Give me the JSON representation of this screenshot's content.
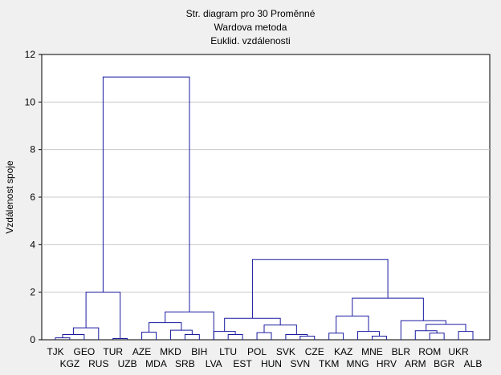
{
  "chart_data": {
    "type": "dendrogram",
    "title": [
      "Str. diagram pro 30  Proměnné",
      "Wardova metoda",
      "Euklid. vzdálenosti"
    ],
    "ylabel": "Vzdálenost spoje",
    "ylim": [
      0,
      12
    ],
    "yticks": [
      "0",
      "2",
      "4",
      "6",
      "8",
      "10",
      "12"
    ],
    "grid": true,
    "leaves": [
      "TJK",
      "KGZ",
      "GEO",
      "RUS",
      "TUR",
      "UZB",
      "AZE",
      "MDA",
      "MKD",
      "SRB",
      "BIH",
      "LVA",
      "LTU",
      "EST",
      "POL",
      "HUN",
      "SVK",
      "SVN",
      "CZE",
      "TKM",
      "KAZ",
      "MNG",
      "MNE",
      "HRV",
      "BLR",
      "ARM",
      "ROM",
      "BGR",
      "UKR",
      "ALB"
    ],
    "merges": [
      {
        "a": "L0",
        "b": "L1",
        "h": 0.08
      },
      {
        "a": "L4",
        "b": "L5",
        "h": 0.05
      },
      {
        "a": "M0",
        "b": "L2",
        "h": 0.22
      },
      {
        "a": "M2",
        "b": "L3",
        "h": 0.5
      },
      {
        "a": "L6",
        "b": "L7",
        "h": 0.32
      },
      {
        "a": "L9",
        "b": "L10",
        "h": 0.22
      },
      {
        "a": "L8",
        "b": "M5",
        "h": 0.4
      },
      {
        "a": "M4",
        "b": "M6",
        "h": 0.72
      },
      {
        "a": "M7",
        "b": "L11",
        "h": 1.17
      },
      {
        "a": "M3",
        "b": "M1",
        "h": 2.0
      },
      {
        "a": "M9",
        "b": "M8",
        "h": 11.05
      },
      {
        "a": "L12",
        "b": "L13",
        "h": 0.22
      },
      {
        "a": "M11",
        "b": "L11",
        "h": 0.35
      },
      {
        "a": "L14",
        "b": "L15",
        "h": 0.3
      },
      {
        "a": "L17",
        "b": "L18",
        "h": 0.15
      },
      {
        "a": "L16",
        "b": "M14",
        "h": 0.22
      },
      {
        "a": "M13",
        "b": "M15",
        "h": 0.62
      },
      {
        "a": "M12",
        "b": "M16",
        "h": 0.9
      },
      {
        "a": "L19",
        "b": "L20",
        "h": 0.28
      },
      {
        "a": "L22",
        "b": "L23",
        "h": 0.15
      },
      {
        "a": "L21",
        "b": "M19",
        "h": 0.35
      },
      {
        "a": "M18",
        "b": "M20",
        "h": 1.0
      },
      {
        "a": "L26",
        "b": "L27",
        "h": 0.28
      },
      {
        "a": "L25",
        "b": "M22",
        "h": 0.38
      },
      {
        "a": "L28",
        "b": "L29",
        "h": 0.35
      },
      {
        "a": "M23",
        "b": "M24",
        "h": 0.65
      },
      {
        "a": "L24",
        "b": "M25",
        "h": 0.8
      },
      {
        "a": "M21",
        "b": "M26",
        "h": 1.75
      },
      {
        "a": "M17",
        "b": "M27",
        "h": 3.38
      }
    ],
    "colors": {
      "link": "#1a1aa0",
      "grid": "#c8c8c8",
      "plot_bg": "#ffffff",
      "axis": "#000000"
    }
  }
}
